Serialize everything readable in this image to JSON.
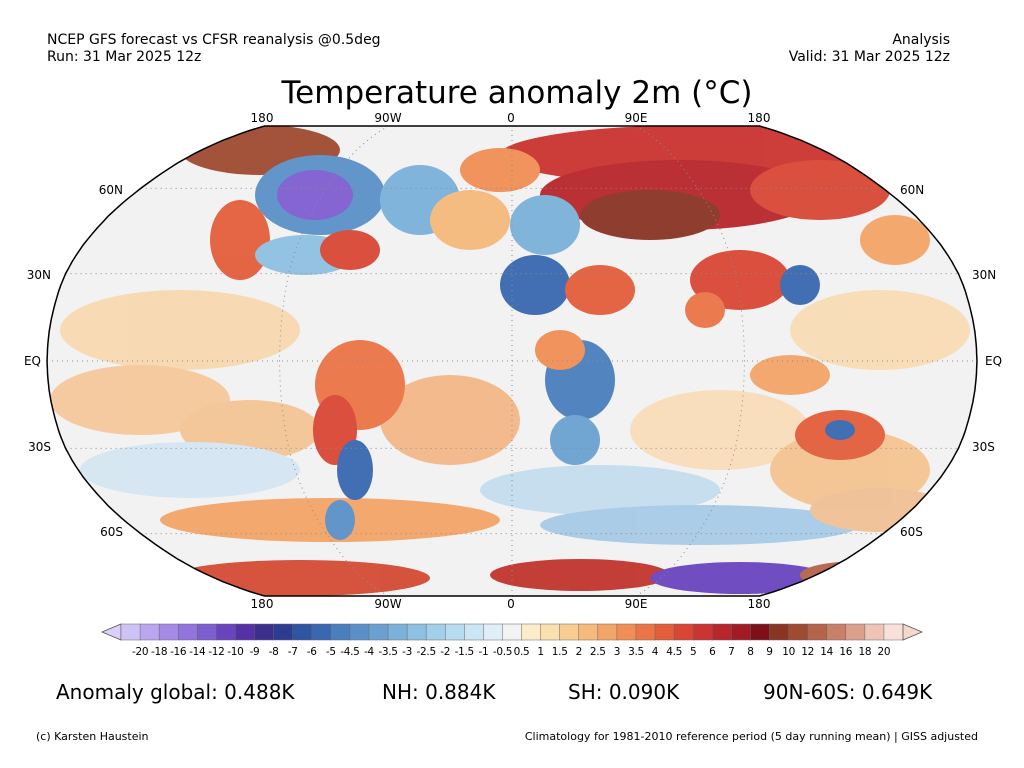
{
  "header": {
    "left_line1": "NCEP GFS forecast vs CFSR reanalysis @0.5deg",
    "left_line2": "Run: 31 Mar 2025 12z",
    "right_line1": "Analysis",
    "right_line2": "Valid: 31 Mar 2025 12z"
  },
  "title": "Temperature anomaly 2m (°C)",
  "map": {
    "projection": "Robinson",
    "lon_labels_top": [
      "180",
      "90W",
      "0",
      "90E",
      "180"
    ],
    "lon_labels_bottom": [
      "180",
      "90W",
      "0",
      "90E",
      "180"
    ],
    "lat_labels_left": [
      "60N",
      "30N",
      "EQ",
      "30S",
      "60S"
    ],
    "lat_labels_right": [
      "60N",
      "30N",
      "EQ",
      "30S",
      "60S"
    ]
  },
  "colorbar": {
    "labels": [
      "-20",
      "-18",
      "-16",
      "-14",
      "-12",
      "-10",
      "-9",
      "-8",
      "-7",
      "-6",
      "-5",
      "-4.5",
      "-4",
      "-3.5",
      "-3",
      "-2.5",
      "-2",
      "-1.5",
      "-1",
      "-0.5",
      "0.5",
      "1",
      "1.5",
      "2",
      "2.5",
      "3",
      "3.5",
      "4",
      "4.5",
      "5",
      "6",
      "7",
      "8",
      "9",
      "10",
      "12",
      "14",
      "16",
      "18",
      "20"
    ],
    "colors": [
      "#cfc3f5",
      "#b9a6ef",
      "#a58be6",
      "#9274dc",
      "#7e5dd0",
      "#6a44bf",
      "#5531a8",
      "#3b2f8c",
      "#2b3c92",
      "#2e55a3",
      "#3968b0",
      "#4a7fbe",
      "#5a90c8",
      "#6ba1d1",
      "#7cb1da",
      "#8ec0e2",
      "#a2cfe9",
      "#b7dcef",
      "#cbe6f4",
      "#dfeef8",
      "#f3f3f3",
      "#fbeccb",
      "#fbdfae",
      "#f8cd92",
      "#f6ba7b",
      "#f3a567",
      "#f08e55",
      "#eb7547",
      "#e45e3b",
      "#d94734",
      "#cb3430",
      "#b8262b",
      "#a01b24",
      "#7e0e18",
      "#8a3424",
      "#a04a31",
      "#b5634a",
      "#c98068",
      "#dba08b",
      "#eec4b5",
      "#f7e1d9"
    ]
  },
  "stats": {
    "global": "Anomaly global: 0.488K",
    "nh": "NH: 0.884K",
    "sh": "SH: 0.090K",
    "band": "90N-60S: 0.649K"
  },
  "footer": {
    "left": "(c) Karsten Haustein",
    "right": "Climatology for 1981-2010 reference period (5 day running mean) | GISS adjusted"
  }
}
